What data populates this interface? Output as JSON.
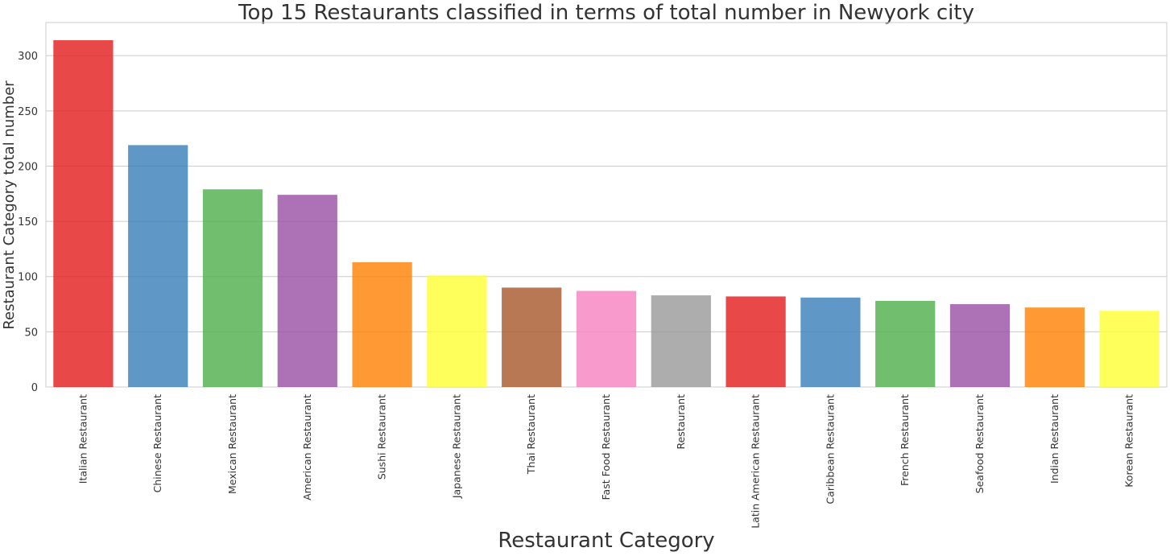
{
  "chart_data": {
    "type": "bar",
    "title": "Top 15 Restaurants classified in terms of total number in Newyork city",
    "xlabel": "Restaurant Category",
    "ylabel": "Restaurant  Category total number",
    "ylim": [
      0,
      330
    ],
    "yticks": [
      0,
      50,
      100,
      150,
      200,
      250,
      300
    ],
    "grid": true,
    "categories": [
      "Italian Restaurant",
      "Chinese Restaurant",
      "Mexican Restaurant",
      "American Restaurant",
      "Sushi Restaurant",
      "Japanese Restaurant",
      "Thai Restaurant",
      "Fast Food Restaurant",
      "Restaurant",
      "Latin American Restaurant",
      "Caribbean Restaurant",
      "French Restaurant",
      "Seafood Restaurant",
      "Indian Restaurant",
      "Korean Restaurant"
    ],
    "values": [
      314,
      219,
      179,
      174,
      113,
      101,
      90,
      87,
      83,
      82,
      81,
      78,
      75,
      72,
      69
    ],
    "colors": [
      "#e41a1c",
      "#377eb8",
      "#4daf4a",
      "#984ea3",
      "#ff7f00",
      "#ffff33",
      "#a65628",
      "#f781bf",
      "#999999",
      "#e41a1c",
      "#377eb8",
      "#4daf4a",
      "#984ea3",
      "#ff7f00",
      "#ffff33"
    ]
  }
}
